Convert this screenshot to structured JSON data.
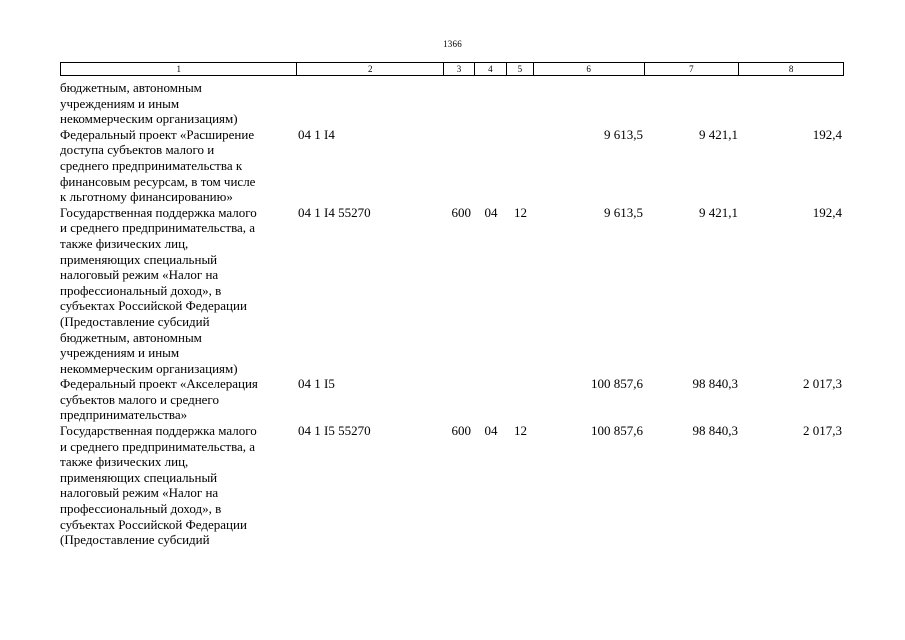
{
  "page_number": "1366",
  "columns": [
    "1",
    "2",
    "3",
    "4",
    "5",
    "6",
    "7",
    "8"
  ],
  "rows": [
    {
      "name_lines": [
        "бюджетным, автономным",
        "учреждениям и иным",
        "некоммерческим организациям)"
      ],
      "code": "",
      "vr": "",
      "rz": "",
      "pr": "",
      "c6": "",
      "c7": "",
      "c8": ""
    },
    {
      "name_lines": [
        "Федеральный проект «Расширение",
        "доступа субъектов малого и",
        "среднего предпринимательства к",
        "финансовым ресурсам, в том числе",
        "к льготному финансированию»"
      ],
      "code": "04 1 I4",
      "vr": "",
      "rz": "",
      "pr": "",
      "c6": "9 613,5",
      "c7": "9 421,1",
      "c8": "192,4"
    },
    {
      "name_lines": [
        "Государственная поддержка малого",
        "и среднего предпринимательства, а",
        "также физических лиц,",
        "применяющих специальный",
        "налоговый режим «Налог на",
        "профессиональный доход», в",
        "субъектах Российской Федерации",
        "(Предоставление субсидий",
        "бюджетным, автономным",
        "учреждениям и иным",
        "некоммерческим организациям)"
      ],
      "code": "04 1 I4 55270",
      "vr": "600",
      "rz": "04",
      "pr": "12",
      "c6": "9 613,5",
      "c7": "9 421,1",
      "c8": "192,4"
    },
    {
      "name_lines": [
        "Федеральный проект «Акселерация",
        "субъектов малого и среднего",
        "предпринимательства»"
      ],
      "code": "04 1 I5",
      "vr": "",
      "rz": "",
      "pr": "",
      "c6": "100 857,6",
      "c7": "98 840,3",
      "c8": "2 017,3"
    },
    {
      "name_lines": [
        "Государственная поддержка малого",
        "и среднего предпринимательства, а",
        "также физических лиц,",
        "применяющих специальный",
        "налоговый режим «Налог на",
        "профессиональный доход», в",
        "субъектах Российской Федерации",
        "(Предоставление субсидий"
      ],
      "code": "04 1 I5 55270",
      "vr": "600",
      "rz": "04",
      "pr": "12",
      "c6": "100 857,6",
      "c7": "98 840,3",
      "c8": "2 017,3"
    }
  ]
}
